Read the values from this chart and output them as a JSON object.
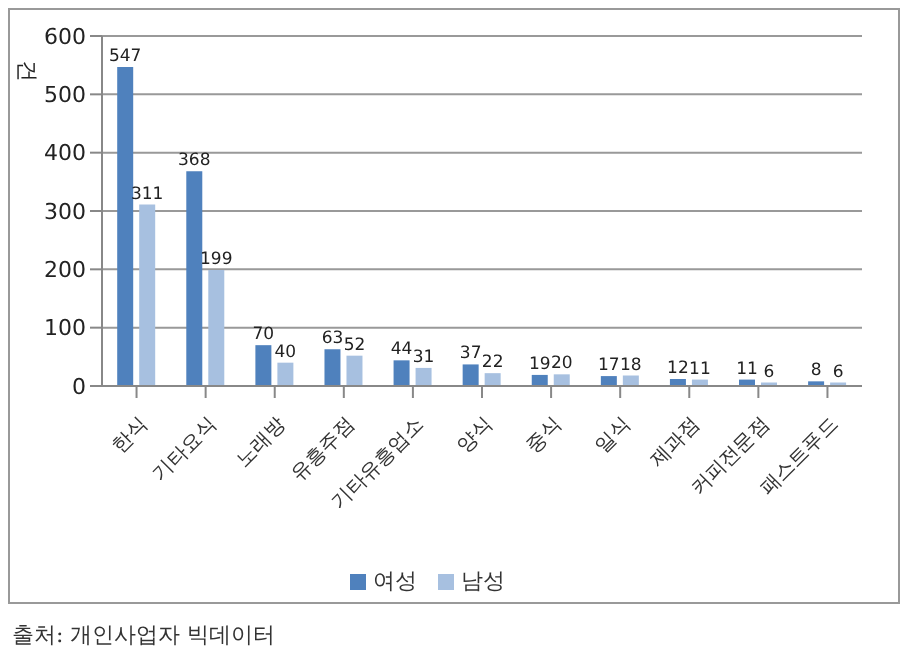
{
  "chart_data": {
    "type": "bar",
    "ylabel": "건",
    "categories": [
      "한식",
      "기타요식",
      "노래방",
      "유흥주점",
      "기타유흥업소",
      "양식",
      "중식",
      "일식",
      "제과점",
      "커피전문점",
      "패스트푸드"
    ],
    "series": [
      {
        "name": "여성",
        "color": "#4f81bd",
        "values": [
          547,
          368,
          70,
          63,
          44,
          37,
          19,
          17,
          12,
          11,
          8
        ]
      },
      {
        "name": "남성",
        "color": "#a7c0e0",
        "values": [
          311,
          199,
          40,
          52,
          31,
          22,
          20,
          18,
          11,
          6,
          6
        ]
      }
    ],
    "ylim": [
      0,
      600
    ],
    "yticks": [
      0,
      100,
      200,
      300,
      400,
      500,
      600
    ],
    "grid": "y",
    "legend": "bottom",
    "data_labels": true,
    "annotations": [
      "출처: 개인사업자 빅데이터"
    ]
  }
}
